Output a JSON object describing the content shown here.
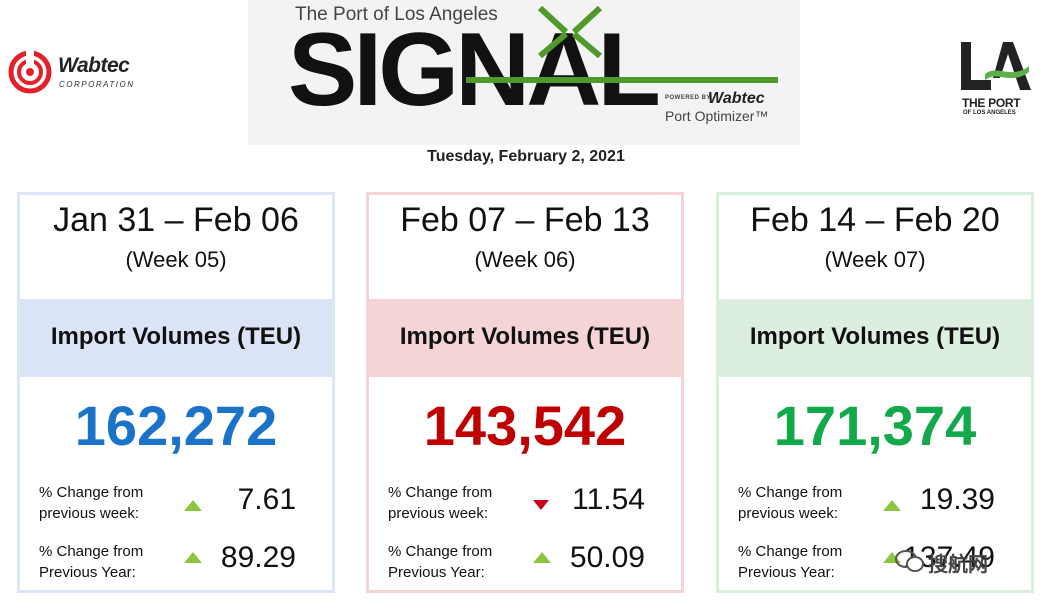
{
  "header": {
    "left_logo": {
      "name": "Wabtec",
      "sub": "CORPORATION"
    },
    "banner": {
      "subtitle": "The Port of Los Angeles",
      "title": "SIGNAL",
      "powered_by": "POWERED BY",
      "powered_brand": "Wabtec",
      "product": "Port Optimizer™"
    },
    "right_logo": {
      "letters": "LA",
      "line1": "THE PORT",
      "line2": "OF LOS ANGELES"
    },
    "date": "Tuesday, February 2, 2021"
  },
  "colors": {
    "blue": "#1a73c8",
    "red": "#c00000",
    "green": "#12a94b",
    "arrow_up": "#8cc63f",
    "arrow_down": "#d0021b",
    "signal_green": "#4f9a2a"
  },
  "cards": [
    {
      "range": "Jan 31 – Feb 06",
      "week": "(Week 05)",
      "metric_label": "Import Volumes (TEU)",
      "value": "162,272",
      "week_change_label_1": "% Change from",
      "week_change_label_2": "previous week:",
      "week_change_direction": "up",
      "week_change_value": "7.61",
      "year_change_label_1": "% Change from",
      "year_change_label_2": "Previous Year:",
      "year_change_direction": "up",
      "year_change_value": "89.29"
    },
    {
      "range": "Feb 07 – Feb 13",
      "week": "(Week 06)",
      "metric_label": "Import Volumes (TEU)",
      "value": "143,542",
      "week_change_label_1": "% Change from",
      "week_change_label_2": "previous week:",
      "week_change_direction": "down",
      "week_change_value": "11.54",
      "year_change_label_1": "% Change from",
      "year_change_label_2": "Previous Year:",
      "year_change_direction": "up",
      "year_change_value": "50.09"
    },
    {
      "range": "Feb 14 – Feb 20",
      "week": "(Week 07)",
      "metric_label": "Import Volumes (TEU)",
      "value": "171,374",
      "week_change_label_1": "% Change from",
      "week_change_label_2": "previous week:",
      "week_change_direction": "up",
      "week_change_value": "19.39",
      "year_change_label_1": "% Change from",
      "year_change_label_2": "Previous Year:",
      "year_change_direction": "up",
      "year_change_value": "137.49"
    }
  ],
  "watermark": "搜航网"
}
